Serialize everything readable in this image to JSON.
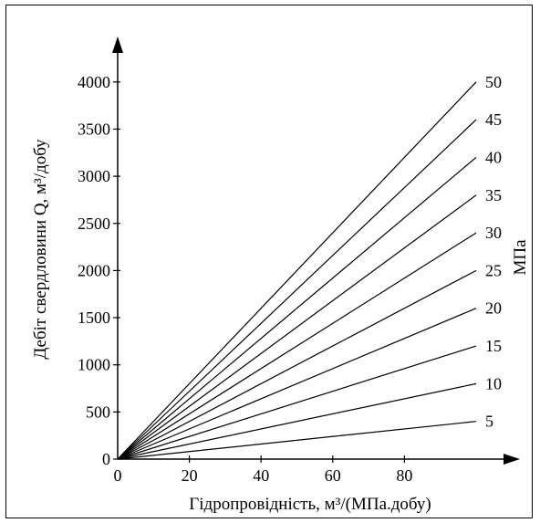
{
  "chart_data": {
    "type": "line",
    "xlabel": "Гідропровідність, м³/(МПа.добу)",
    "ylabel": "Дебіт свердловини Q, м³/добу",
    "unit_label": "МПа",
    "xlim": [
      0,
      100
    ],
    "ylim": [
      0,
      4000
    ],
    "x_ticks": [
      "0",
      "20",
      "40",
      "60",
      "80"
    ],
    "y_ticks": [
      "0",
      "500",
      "1000",
      "1500",
      "2000",
      "2500",
      "3000",
      "3500",
      "4000"
    ],
    "grid": false,
    "series": [
      {
        "name": "5",
        "x": [
          0,
          100
        ],
        "values": [
          0,
          400
        ]
      },
      {
        "name": "10",
        "x": [
          0,
          100
        ],
        "values": [
          0,
          800
        ]
      },
      {
        "name": "15",
        "x": [
          0,
          100
        ],
        "values": [
          0,
          1200
        ]
      },
      {
        "name": "20",
        "x": [
          0,
          100
        ],
        "values": [
          0,
          1600
        ]
      },
      {
        "name": "25",
        "x": [
          0,
          100
        ],
        "values": [
          0,
          2000
        ]
      },
      {
        "name": "30",
        "x": [
          0,
          100
        ],
        "values": [
          0,
          2400
        ]
      },
      {
        "name": "35",
        "x": [
          0,
          100
        ],
        "values": [
          0,
          2800
        ]
      },
      {
        "name": "40",
        "x": [
          0,
          100
        ],
        "values": [
          0,
          3200
        ]
      },
      {
        "name": "45",
        "x": [
          0,
          100
        ],
        "values": [
          0,
          3600
        ]
      },
      {
        "name": "50",
        "x": [
          0,
          100
        ],
        "values": [
          0,
          4000
        ]
      }
    ]
  }
}
